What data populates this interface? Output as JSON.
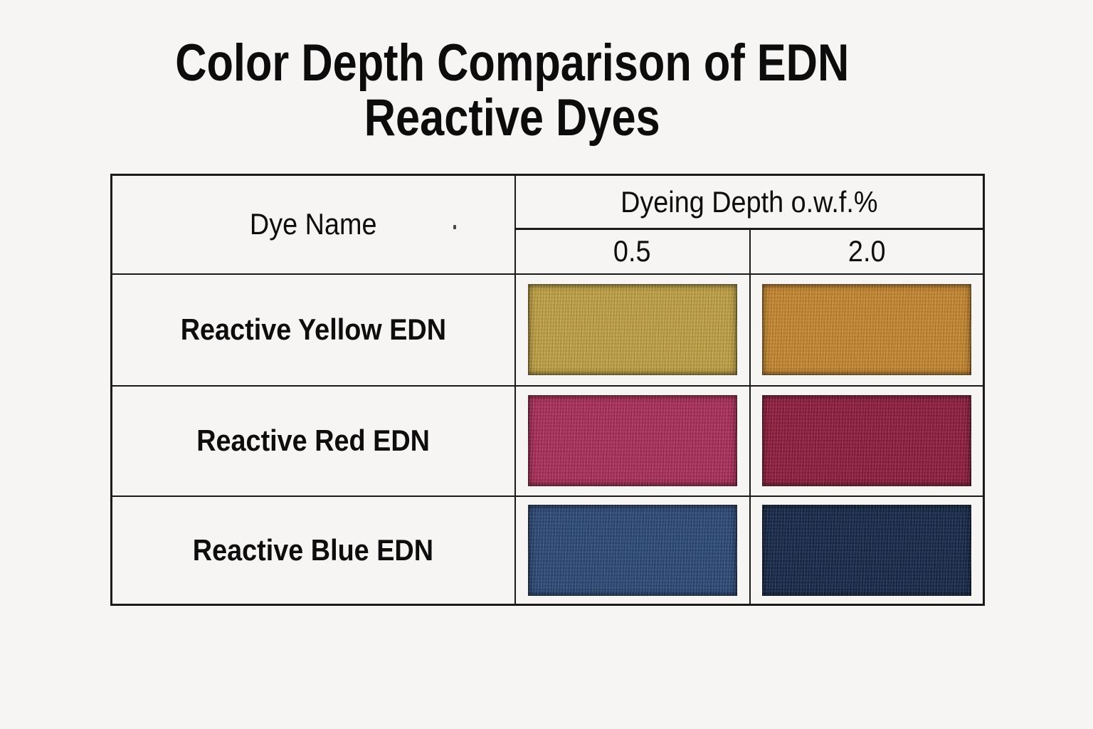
{
  "page": {
    "background_color": "#f6f5f4",
    "title_line1": "Color Depth Comparison of EDN",
    "title_line2": "Reactive Dyes"
  },
  "chart_data": {
    "type": "table",
    "title": "Color Depth Comparison of EDN Reactive Dyes",
    "columns": [
      "Dye Name",
      "Dyeing Depth o.w.f.% — 0.5",
      "Dyeing Depth o.w.f.% — 2.0"
    ],
    "rows": [
      [
        "Reactive Yellow EDN",
        "swatch #bfa044",
        "swatch #c5862f"
      ],
      [
        "Reactive Red EDN",
        "swatch #a92d58",
        "swatch #8e1c3e"
      ],
      [
        "Reactive Blue EDN",
        "swatch #2b4875",
        "swatch #152848"
      ]
    ]
  },
  "table": {
    "border_color": "#1a1a1a",
    "header": {
      "dye_name_label": "Dye Name",
      "depth_group_label": "Dyeing Depth o.w.f.%",
      "depth_values": [
        "0.5",
        "2.0"
      ]
    },
    "rows": [
      {
        "dye_name": "Reactive Yellow EDN",
        "swatch_05": {
          "depth": "0.5",
          "color": "#bfa044"
        },
        "swatch_20": {
          "depth": "2.0",
          "color": "#c5862f"
        }
      },
      {
        "dye_name": "Reactive Red EDN",
        "swatch_05": {
          "depth": "0.5",
          "color": "#a92d58"
        },
        "swatch_20": {
          "depth": "2.0",
          "color": "#8e1c3e"
        }
      },
      {
        "dye_name": "Reactive Blue EDN",
        "swatch_05": {
          "depth": "0.5",
          "color": "#2b4875"
        },
        "swatch_20": {
          "depth": "2.0",
          "color": "#152848"
        }
      }
    ]
  }
}
